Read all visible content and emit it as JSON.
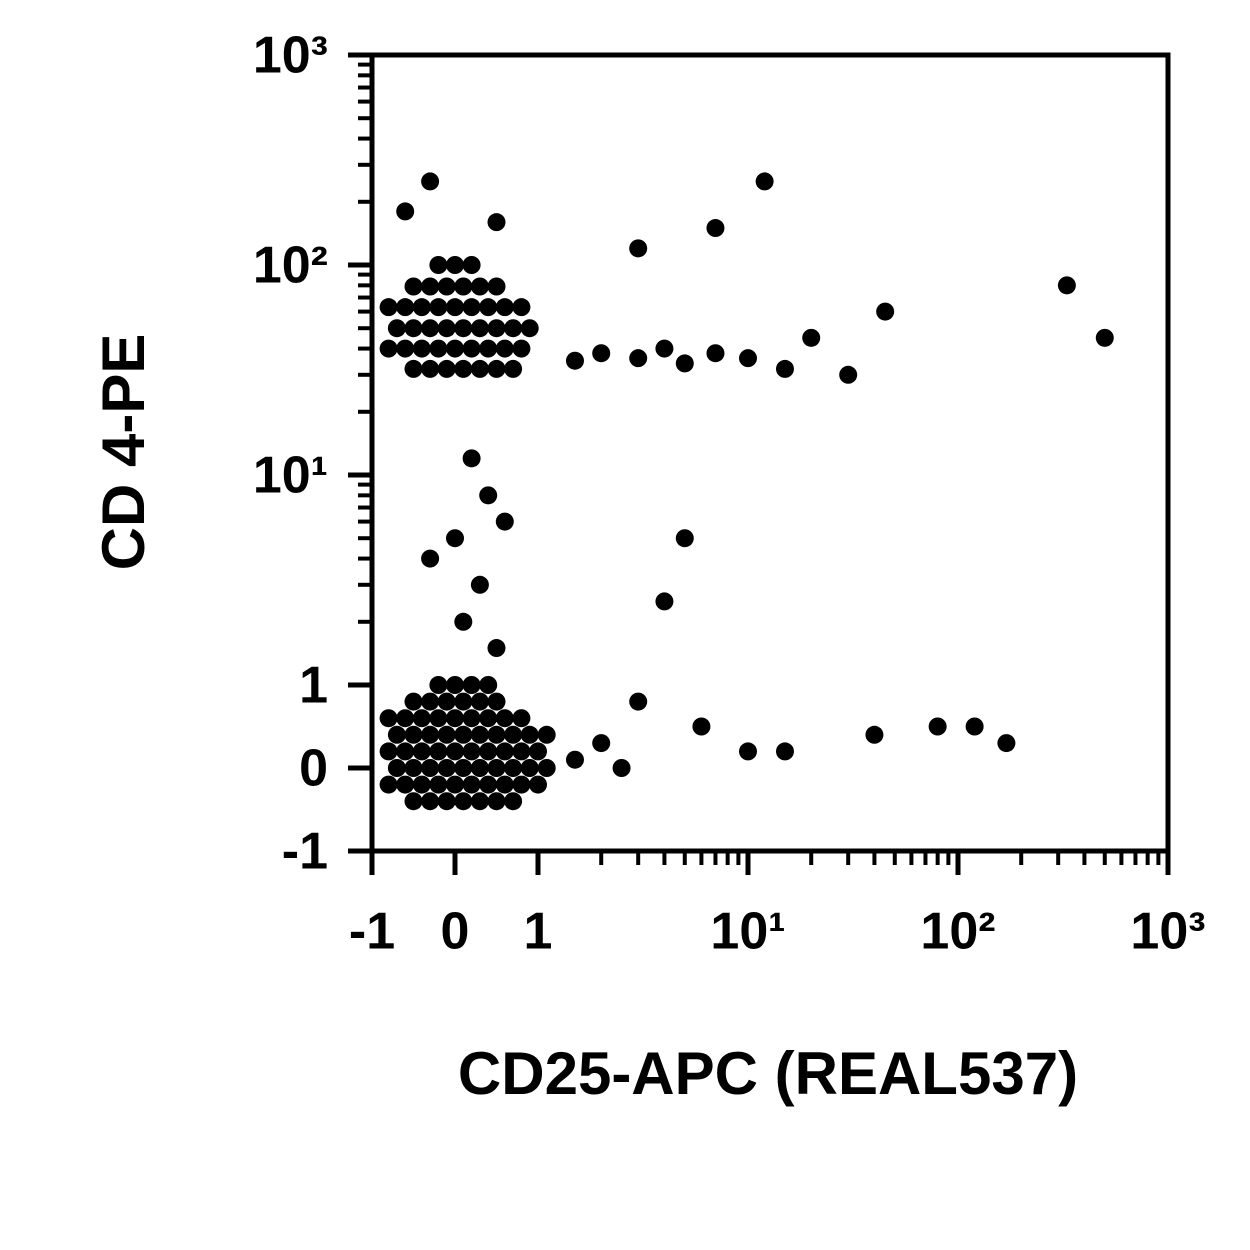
{
  "chart_data": {
    "type": "scatter",
    "x_label": "CD25-APC (REAL537)",
    "y_label": "CD 4-PE",
    "xscale": "biexponential",
    "yscale": "biexponential",
    "xlim": [
      -1,
      1000
    ],
    "ylim": [
      -1,
      1000
    ],
    "xticks": [
      -1,
      0,
      1,
      {
        "value": 10,
        "label": "10¹"
      },
      {
        "value": 100,
        "label": "10²"
      },
      {
        "value": 1000,
        "label": "10³"
      }
    ],
    "yticks": [
      -1,
      0,
      1,
      {
        "value": 10,
        "label": "10¹"
      },
      {
        "value": 100,
        "label": "10²"
      },
      {
        "value": 1000,
        "label": "10³"
      }
    ],
    "xminorticks": [
      2,
      3,
      4,
      5,
      6,
      7,
      8,
      9,
      20,
      30,
      40,
      50,
      60,
      70,
      80,
      90,
      200,
      300,
      400,
      500,
      600,
      700,
      800,
      900
    ],
    "yminorticks": [
      2,
      3,
      4,
      5,
      6,
      7,
      8,
      9,
      20,
      30,
      40,
      50,
      60,
      70,
      80,
      90,
      200,
      300,
      400,
      500,
      600,
      700,
      800,
      900
    ],
    "color": "#000000",
    "x": [
      -0.5,
      -0.3,
      -0.1,
      0.1,
      0.3,
      0.5,
      0.7,
      -0.8,
      -0.6,
      -0.4,
      -0.2,
      0,
      0.2,
      0.4,
      0.6,
      0.8,
      1.0,
      -0.7,
      -0.5,
      -0.3,
      -0.1,
      0.1,
      0.3,
      0.5,
      0.7,
      0.9,
      1.1,
      -0.8,
      -0.6,
      -0.4,
      -0.2,
      0,
      0.2,
      0.4,
      0.6,
      0.8,
      1.0,
      -0.7,
      -0.5,
      -0.3,
      -0.1,
      0.1,
      0.3,
      0.5,
      0.7,
      0.9,
      1.1,
      -0.8,
      -0.6,
      -0.4,
      -0.2,
      0,
      0.2,
      0.4,
      0.6,
      0.8,
      -0.5,
      -0.3,
      -0.1,
      0.1,
      0.3,
      0.5,
      -0.2,
      0,
      0.2,
      0.4,
      -0.5,
      -0.3,
      -0.1,
      0.1,
      0.3,
      0.5,
      0.7,
      -0.8,
      -0.6,
      -0.4,
      -0.2,
      0,
      0.2,
      0.4,
      0.6,
      0.8,
      -0.7,
      -0.5,
      -0.3,
      -0.1,
      0.1,
      0.3,
      0.5,
      0.7,
      0.9,
      -0.8,
      -0.6,
      -0.4,
      -0.2,
      0,
      0.2,
      0.4,
      0.6,
      0.8,
      -0.5,
      -0.3,
      -0.1,
      0.1,
      0.3,
      0.5,
      -0.2,
      0,
      0.2,
      1.5,
      2,
      3,
      4,
      5,
      7,
      10,
      15,
      0.1,
      0.3,
      0.0,
      0.4,
      0.2,
      0.5,
      -0.3,
      0.6,
      20,
      30,
      45,
      5,
      6,
      10,
      3,
      2,
      80,
      120,
      170,
      330,
      500,
      4,
      15,
      40,
      7,
      3,
      12,
      -0.3,
      -0.6,
      0.5,
      1.5,
      2.5
    ],
    "y": [
      -0.4,
      -0.4,
      -0.4,
      -0.4,
      -0.4,
      -0.4,
      -0.4,
      -0.2,
      -0.2,
      -0.2,
      -0.2,
      -0.2,
      -0.2,
      -0.2,
      -0.2,
      -0.2,
      -0.2,
      0,
      0,
      0,
      0,
      0,
      0,
      0,
      0,
      0,
      0,
      0.2,
      0.2,
      0.2,
      0.2,
      0.2,
      0.2,
      0.2,
      0.2,
      0.2,
      0.2,
      0.4,
      0.4,
      0.4,
      0.4,
      0.4,
      0.4,
      0.4,
      0.4,
      0.4,
      0.4,
      0.6,
      0.6,
      0.6,
      0.6,
      0.6,
      0.6,
      0.6,
      0.6,
      0.6,
      0.8,
      0.8,
      0.8,
      0.8,
      0.8,
      0.8,
      1.0,
      1.0,
      1.0,
      1.0,
      32,
      32,
      32,
      32,
      32,
      32,
      32,
      40,
      40,
      40,
      40,
      40,
      40,
      40,
      40,
      40,
      50,
      50,
      50,
      50,
      50,
      50,
      50,
      50,
      50,
      63,
      63,
      63,
      63,
      63,
      63,
      63,
      63,
      63,
      79,
      79,
      79,
      79,
      79,
      79,
      100,
      100,
      100,
      35,
      38,
      36,
      40,
      34,
      38,
      36,
      32,
      2,
      3,
      5,
      8,
      12,
      1.5,
      4,
      6,
      45,
      30,
      60,
      5,
      0.5,
      0.2,
      0.8,
      0.3,
      0.5,
      0.5,
      0.3,
      80,
      45,
      2.5,
      0.2,
      0.4,
      150,
      120,
      250,
      250,
      180,
      160,
      0.1,
      0
    ],
    "marker_radius": 9
  }
}
